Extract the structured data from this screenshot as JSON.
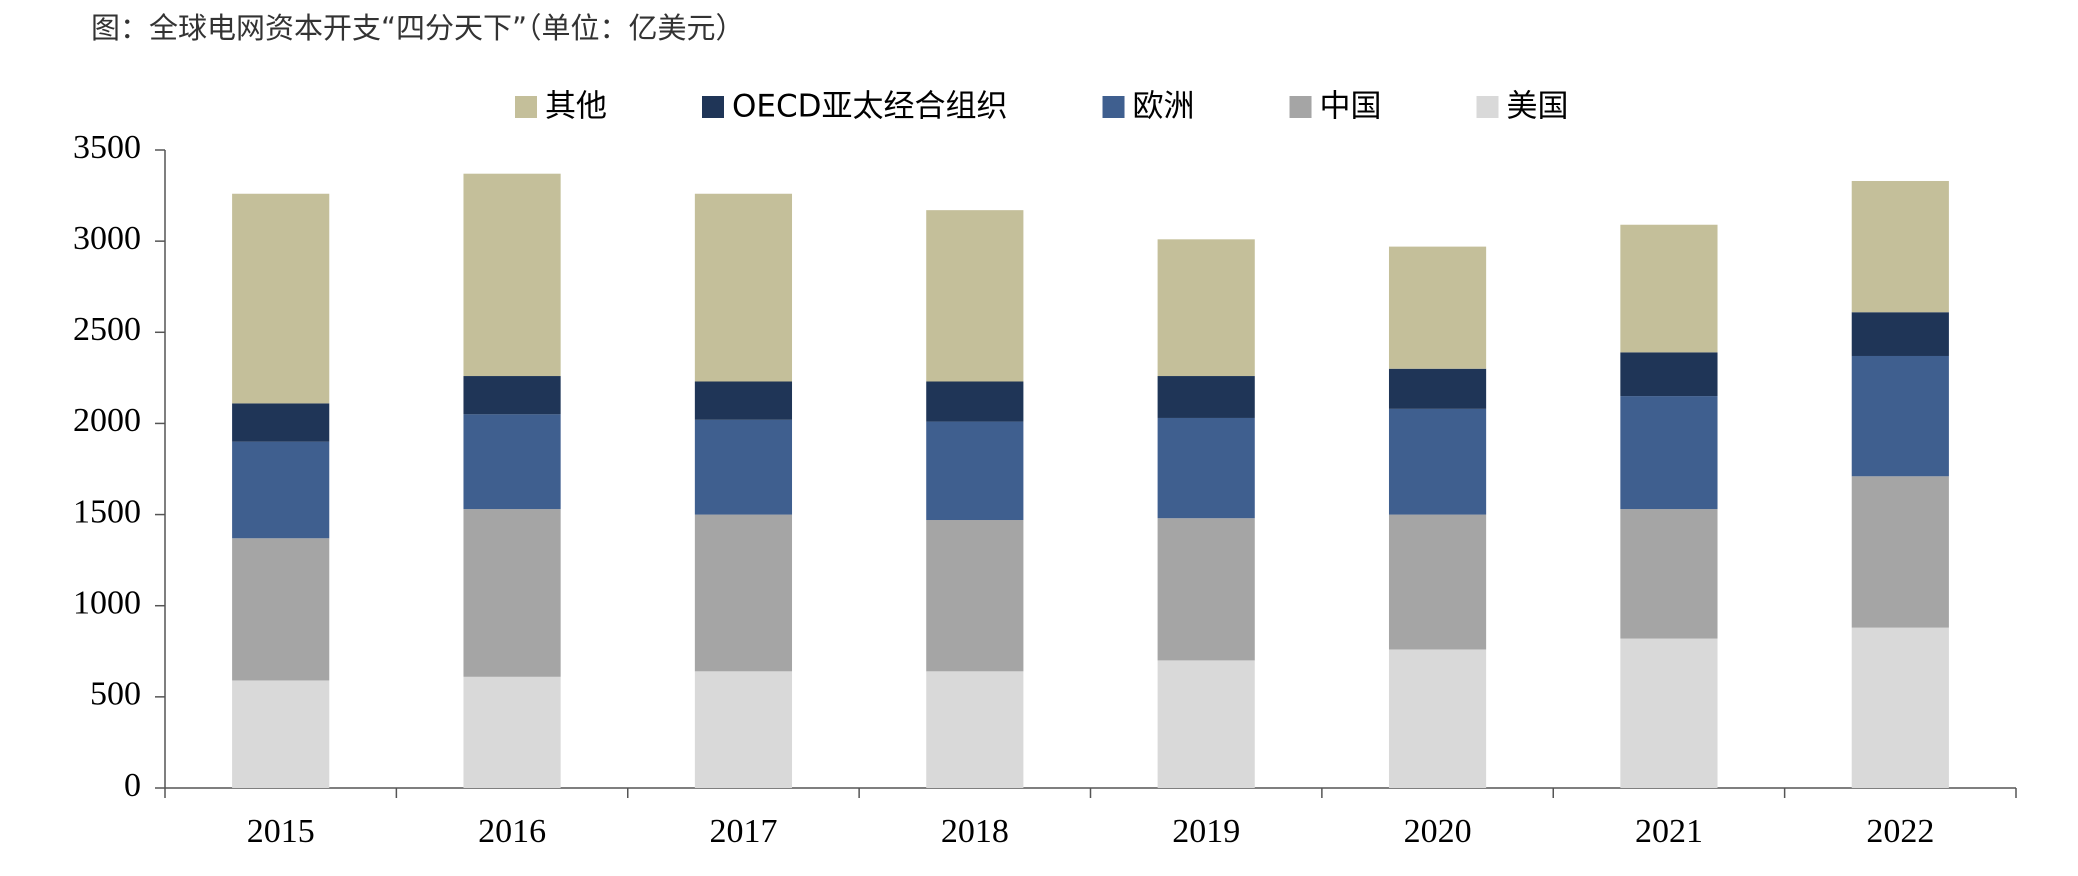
{
  "chart_data": {
    "type": "stacked_bar",
    "title": "图：全球电网资本开支“四分天下”（单位：亿美元）",
    "categories": [
      "2015",
      "2016",
      "2017",
      "2018",
      "2019",
      "2020",
      "2021",
      "2022"
    ],
    "series": [
      {
        "name": "其他",
        "color": "#c4bf9a",
        "values": [
          1150,
          1110,
          1030,
          940,
          750,
          670,
          700,
          720
        ]
      },
      {
        "name": "OECD亚太经合组织",
        "color": "#1f3557",
        "values": [
          210,
          210,
          210,
          220,
          230,
          220,
          240,
          240
        ]
      },
      {
        "name": "欧洲",
        "color": "#3f5f8f",
        "values": [
          530,
          520,
          520,
          540,
          550,
          580,
          620,
          660
        ]
      },
      {
        "name": "中国",
        "color": "#a5a5a5",
        "values": [
          780,
          920,
          860,
          830,
          780,
          740,
          710,
          830
        ]
      },
      {
        "name": "美国",
        "color": "#d9d9d9",
        "values": [
          590,
          610,
          640,
          640,
          700,
          760,
          820,
          880
        ]
      }
    ],
    "ylim": [
      0,
      3500
    ],
    "yticks": [
      0,
      500,
      1000,
      1500,
      2000,
      2500,
      3000,
      3500
    ],
    "legend": "top",
    "grid": false
  }
}
